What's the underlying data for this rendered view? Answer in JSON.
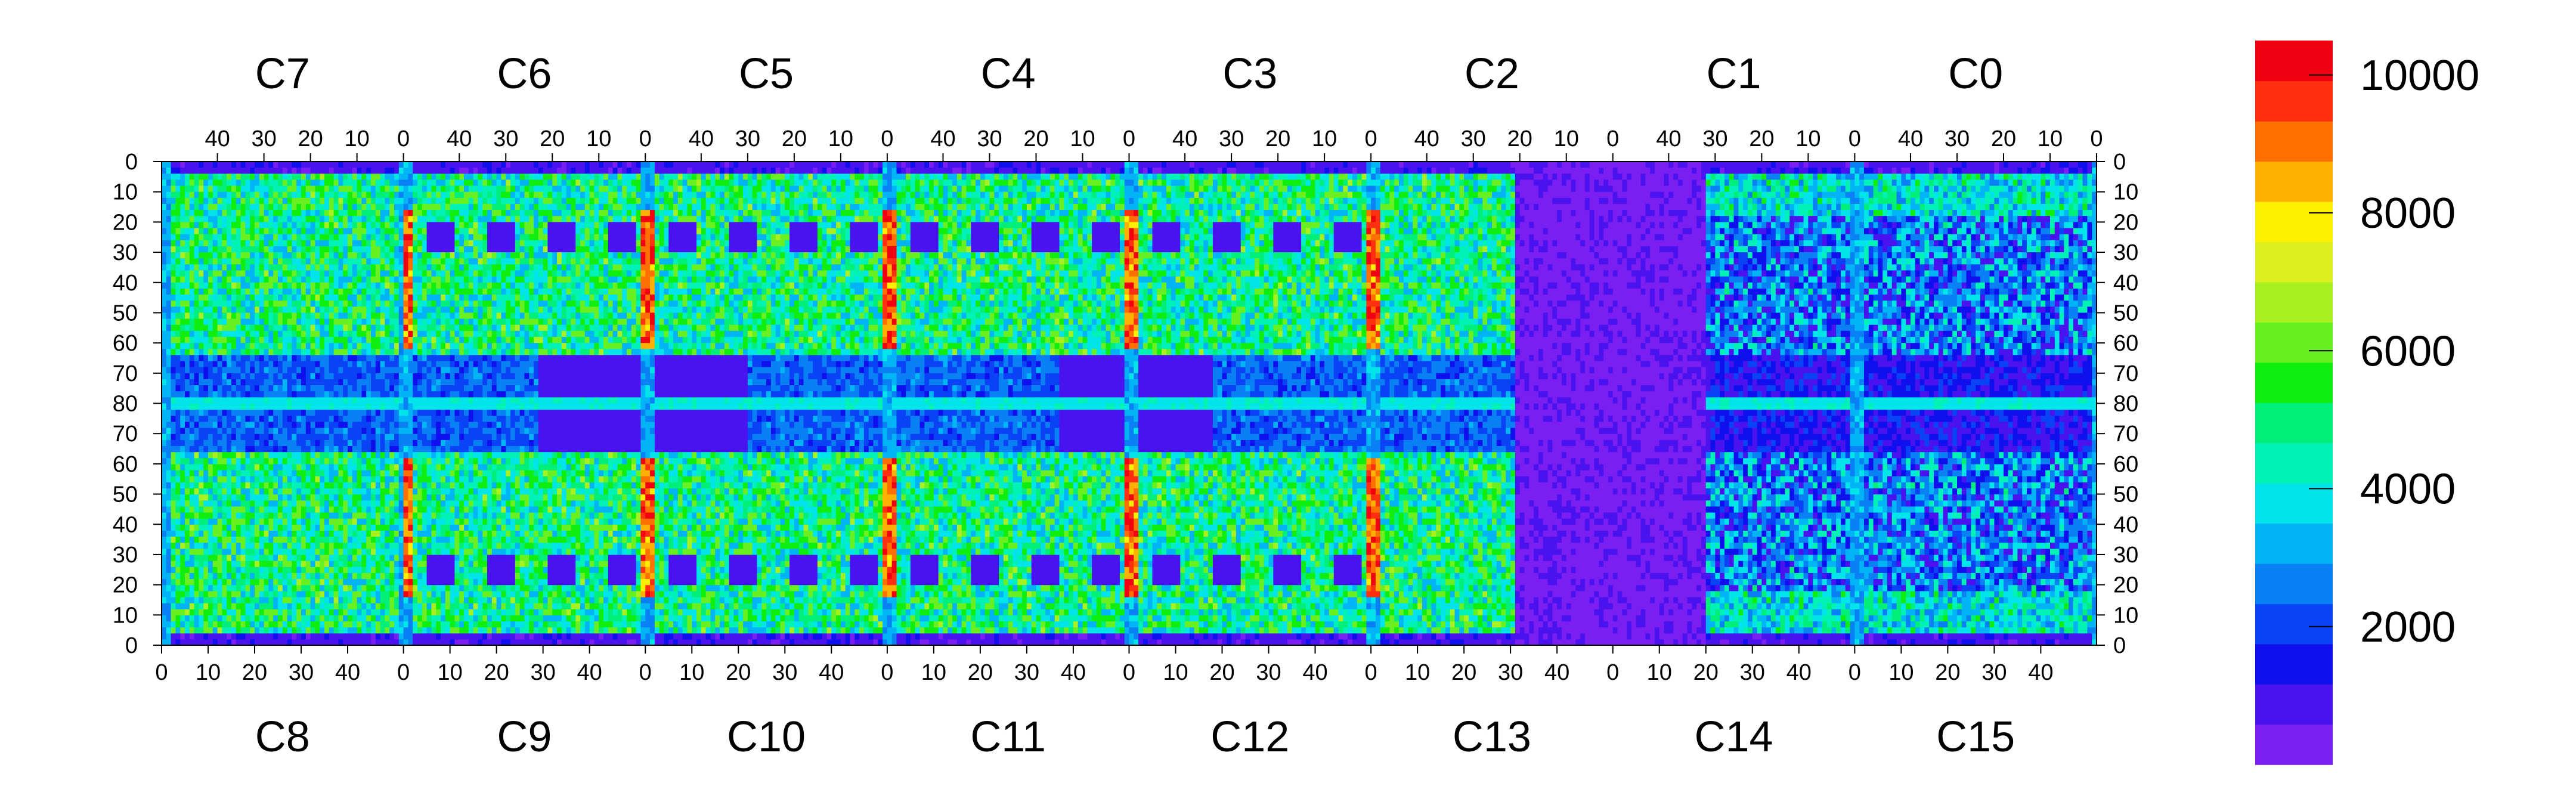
{
  "chart_data": {
    "type": "heatmap",
    "title": "",
    "xlabel": "",
    "ylabel": "",
    "top_chips": [
      "C7",
      "C6",
      "C5",
      "C4",
      "C3",
      "C2",
      "C1",
      "C0"
    ],
    "bottom_chips": [
      "C8",
      "C9",
      "C10",
      "C11",
      "C12",
      "C13",
      "C14",
      "C15"
    ],
    "top_tick_labels": [
      "40",
      "30",
      "20",
      "10",
      "0"
    ],
    "bottom_tick_labels": [
      "0",
      "10",
      "20",
      "30",
      "40"
    ],
    "y_tick_labels_top_half": [
      "0",
      "10",
      "20",
      "30",
      "40",
      "50",
      "60",
      "70"
    ],
    "y_center_label": "80",
    "y_tick_labels_bottom_half": [
      "70",
      "60",
      "50",
      "40",
      "30",
      "20",
      "10",
      "0"
    ],
    "colorbar": {
      "min": 0,
      "max": 10500,
      "tick_values": [
        2000,
        4000,
        6000,
        8000,
        10000
      ],
      "tick_labels": [
        "2000",
        "4000",
        "6000",
        "8000",
        "10000"
      ],
      "colors": [
        "#7a1ef2",
        "#4a12ee",
        "#1010ee",
        "#0a42f5",
        "#0a80f5",
        "#00b4f5",
        "#00e4ea",
        "#00f2b6",
        "#00ee7a",
        "#10ee10",
        "#6af020",
        "#a8f020",
        "#dcf020",
        "#fff000",
        "#ffb000",
        "#ff7000",
        "#ff3010",
        "#f00010"
      ]
    },
    "grid": false,
    "legend": "right",
    "notes": "Map of counts over 16 sensor chips (C0–C15), 52 columns × 80 rows per chip; high (red) columns at chip boundaries, low region around C13/C14."
  }
}
